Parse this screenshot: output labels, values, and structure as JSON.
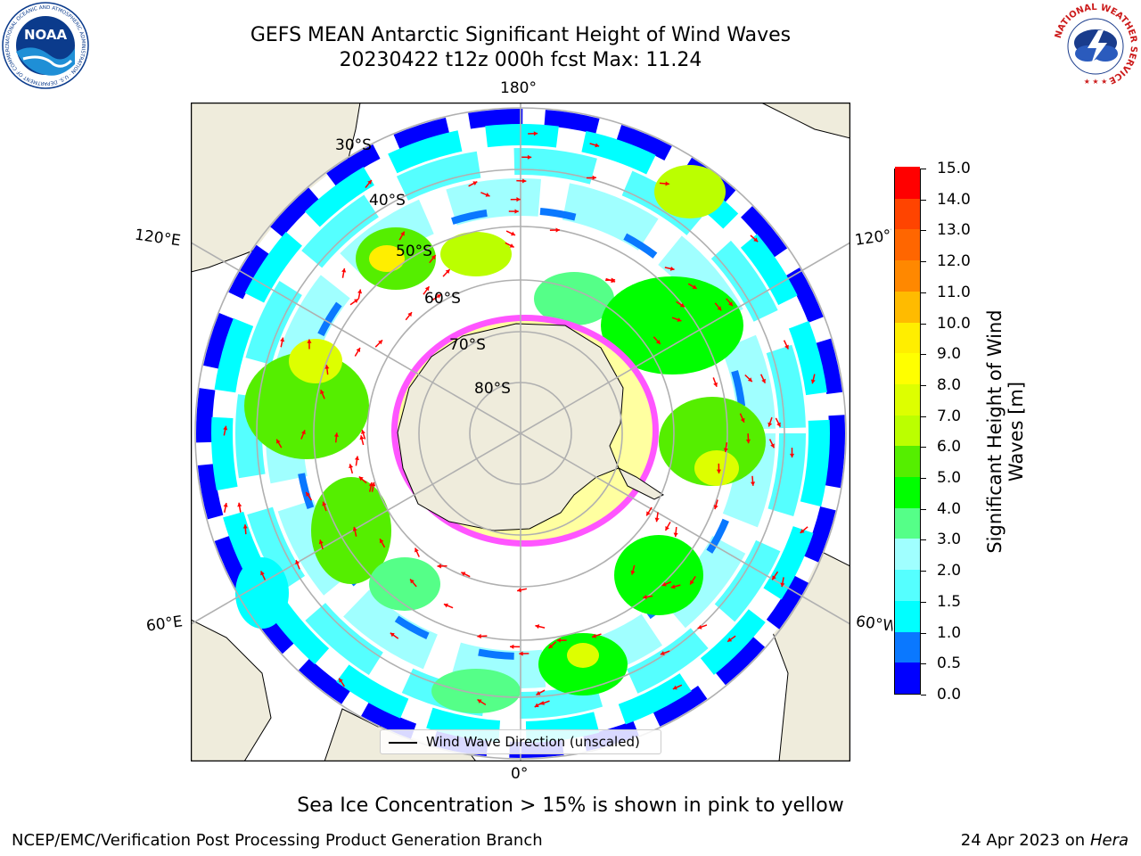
{
  "header": {
    "title_line1": "GEFS MEAN Antarctic Significant Height of Wind Waves",
    "title_line2": "20230422 t12z 000h fcst   Max: 11.24"
  },
  "logos": {
    "noaa": {
      "text": "NOAA",
      "ring_text": "NATIONAL OCEANIC AND ATMOSPHERIC ADMINISTRATION · U.S. DEPARTMENT OF COMMERCE",
      "color": "#0b3b8c"
    },
    "nws": {
      "ring_text": "NATIONAL WEATHER SERVICE",
      "color": "#cc1a1a"
    }
  },
  "map": {
    "projection": "south-polar-stereographic",
    "longitude_labels": {
      "top": "180°",
      "left_upper": "120°E",
      "right_upper": "120°W",
      "left_lower": "60°E",
      "right_lower": "60°W",
      "bottom": "0°"
    },
    "latitude_labels": [
      "30°S",
      "40°S",
      "50°S",
      "60°S",
      "70°S",
      "80°S"
    ],
    "land_color": "#efecdc",
    "ocean_color": "#ffffff",
    "vector_color": "#ff0000",
    "ice_colors": [
      "#ff55ff",
      "#ffffa0"
    ],
    "legend": {
      "label": "Wind Wave Direction (unscaled)",
      "icon": "black-line"
    }
  },
  "colorbar": {
    "label": "Significant Height of Wind Waves [m]",
    "levels": [
      0.0,
      0.5,
      1.0,
      1.5,
      2.0,
      3.0,
      4.0,
      5.0,
      6.0,
      7.0,
      8.0,
      9.0,
      10.0,
      11.0,
      12.0,
      13.0,
      14.0,
      15.0
    ],
    "tick_labels": [
      "0.0",
      "0.5",
      "1.0",
      "1.5",
      "2.0",
      "3.0",
      "4.0",
      "5.0",
      "6.0",
      "7.0",
      "8.0",
      "9.0",
      "10.0",
      "11.0",
      "12.0",
      "13.0",
      "14.0",
      "15.0"
    ],
    "colors": [
      "#0000ff",
      "#0a78ff",
      "#00ffff",
      "#55ffff",
      "#a0ffff",
      "#55ff88",
      "#00ff00",
      "#55ee00",
      "#bbff00",
      "#ddff00",
      "#ffff00",
      "#ffee00",
      "#ffbb00",
      "#ff8800",
      "#ff6600",
      "#ff4400",
      "#ff0000"
    ]
  },
  "notes": {
    "sea_ice": "Sea Ice Concentration > 15% is shown in pink to yellow"
  },
  "footer": {
    "left": "NCEP/EMC/Verification Post Processing Product Generation Branch",
    "date": "24 Apr 2023 on",
    "host": "Hera"
  }
}
